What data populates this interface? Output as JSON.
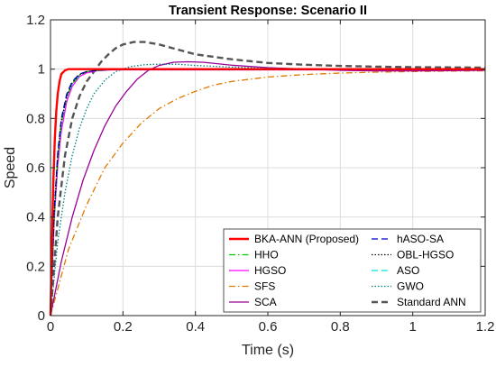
{
  "chart_data": {
    "type": "line",
    "title": "Transient Response: Scenario II",
    "xlabel": "Time (s)",
    "ylabel": "Speed",
    "xlim": [
      0,
      1.2
    ],
    "ylim": [
      0,
      1.2
    ],
    "xticks": [
      0,
      0.2,
      0.4,
      0.6,
      0.8,
      1,
      1.2
    ],
    "xtick_labels": [
      "0",
      "0.2",
      "0.4",
      "0.6",
      "0.8",
      "1",
      "1.2"
    ],
    "yticks": [
      0,
      0.2,
      0.4,
      0.6,
      0.8,
      1,
      1.2
    ],
    "ytick_labels": [
      "0",
      "0.2",
      "0.4",
      "0.6",
      "0.8",
      "1",
      "1.2"
    ],
    "grid": true,
    "legend_position": "bottom-right",
    "legend_columns": 2,
    "series": [
      {
        "name": "BKA-ANN (Proposed)",
        "color": "#ff0000",
        "dash": "solid",
        "line_weight": "thick",
        "x": [
          0,
          0.004,
          0.008,
          0.012,
          0.016,
          0.02,
          0.025,
          0.03,
          0.04,
          0.05,
          0.06,
          1.2
        ],
        "y": [
          0,
          0.3,
          0.55,
          0.72,
          0.83,
          0.9,
          0.95,
          0.98,
          0.995,
          1.0,
          1.0,
          1.0
        ]
      },
      {
        "name": "hASO-SA",
        "color": "#0000cc",
        "dash": "dashed",
        "line_weight": "normal",
        "x": [
          0,
          0.01,
          0.02,
          0.03,
          0.045,
          0.06,
          0.08,
          0.1,
          0.13,
          0.17,
          1.2
        ],
        "y": [
          0,
          0.42,
          0.66,
          0.8,
          0.9,
          0.95,
          0.98,
          0.99,
          0.995,
          0.998,
          0.998
        ]
      },
      {
        "name": "HHO",
        "color": "#00cc00",
        "dash": "dashdot",
        "line_weight": "normal",
        "x": [
          0,
          0.01,
          0.02,
          0.03,
          0.045,
          0.06,
          0.08,
          0.1,
          0.13,
          0.17,
          1.2
        ],
        "y": [
          0,
          0.4,
          0.64,
          0.78,
          0.89,
          0.94,
          0.975,
          0.99,
          0.995,
          0.998,
          0.998
        ]
      },
      {
        "name": "OBL-HGSO",
        "color": "#000000",
        "dash": "dotted",
        "line_weight": "normal",
        "x": [
          0,
          0.01,
          0.02,
          0.03,
          0.045,
          0.06,
          0.08,
          0.1,
          0.13,
          0.17,
          1.2
        ],
        "y": [
          0,
          0.41,
          0.65,
          0.79,
          0.89,
          0.945,
          0.978,
          0.99,
          0.996,
          0.998,
          0.998
        ]
      },
      {
        "name": "HGSO",
        "color": "#ff00ff",
        "dash": "solid",
        "line_weight": "normal",
        "x": [
          0,
          0.01,
          0.02,
          0.03,
          0.045,
          0.06,
          0.08,
          0.1,
          0.13,
          0.17,
          1.2
        ],
        "y": [
          0,
          0.38,
          0.61,
          0.75,
          0.87,
          0.93,
          0.97,
          0.985,
          0.994,
          0.997,
          0.997
        ]
      },
      {
        "name": "ASO",
        "color": "#00e5e5",
        "dash": "dashed",
        "line_weight": "normal",
        "x": [
          0,
          0.01,
          0.02,
          0.03,
          0.045,
          0.06,
          0.08,
          0.1,
          0.13,
          0.17,
          1.2
        ],
        "y": [
          0,
          0.4,
          0.64,
          0.78,
          0.89,
          0.94,
          0.975,
          0.99,
          0.995,
          0.998,
          0.998
        ]
      },
      {
        "name": "SFS",
        "color": "#e07b00",
        "dash": "dashdot",
        "line_weight": "normal",
        "x": [
          0,
          0.05,
          0.1,
          0.15,
          0.2,
          0.25,
          0.3,
          0.35,
          0.4,
          0.45,
          0.5,
          0.6,
          0.7,
          0.8,
          0.9,
          1.0,
          1.1,
          1.2
        ],
        "y": [
          0,
          0.27,
          0.45,
          0.6,
          0.7,
          0.78,
          0.84,
          0.88,
          0.91,
          0.935,
          0.95,
          0.968,
          0.978,
          0.984,
          0.988,
          0.99,
          0.992,
          0.993
        ]
      },
      {
        "name": "GWO",
        "color": "#008080",
        "dash": "dotted",
        "line_weight": "normal",
        "x": [
          0,
          0.02,
          0.04,
          0.06,
          0.08,
          0.1,
          0.12,
          0.15,
          0.18,
          0.22,
          0.26,
          0.3,
          0.35,
          0.4,
          0.5,
          0.6,
          0.8,
          1.0,
          1.2
        ],
        "y": [
          0,
          0.3,
          0.5,
          0.65,
          0.76,
          0.84,
          0.9,
          0.955,
          0.99,
          1.01,
          1.018,
          1.02,
          1.02,
          1.015,
          1.008,
          1.004,
          1.0,
          1.0,
          1.0
        ]
      },
      {
        "name": "SCA",
        "color": "#990099",
        "dash": "solid",
        "line_weight": "normal",
        "x": [
          0,
          0.03,
          0.06,
          0.09,
          0.12,
          0.15,
          0.18,
          0.21,
          0.24,
          0.27,
          0.3,
          0.34,
          0.38,
          0.42,
          0.46,
          0.5,
          0.6,
          0.7,
          0.8,
          0.9,
          1.0,
          1.1,
          1.2
        ],
        "y": [
          0,
          0.22,
          0.4,
          0.55,
          0.67,
          0.77,
          0.85,
          0.91,
          0.96,
          0.995,
          1.015,
          1.028,
          1.03,
          1.028,
          1.022,
          1.016,
          1.006,
          1.0,
          0.995,
          0.993,
          0.993,
          0.994,
          0.995
        ]
      },
      {
        "name": "Standard ANN",
        "color": "#555555",
        "dash": "dashed",
        "line_weight": "thick",
        "x": [
          0,
          0.02,
          0.04,
          0.06,
          0.08,
          0.1,
          0.12,
          0.14,
          0.16,
          0.18,
          0.2,
          0.23,
          0.26,
          0.3,
          0.35,
          0.4,
          0.5,
          0.6,
          0.7,
          0.8,
          0.9,
          1.0,
          1.1,
          1.2
        ],
        "y": [
          0,
          0.4,
          0.65,
          0.8,
          0.89,
          0.95,
          0.99,
          1.03,
          1.06,
          1.085,
          1.1,
          1.11,
          1.11,
          1.1,
          1.08,
          1.06,
          1.04,
          1.025,
          1.018,
          1.013,
          1.01,
          1.008,
          1.007,
          1.006
        ]
      }
    ]
  }
}
